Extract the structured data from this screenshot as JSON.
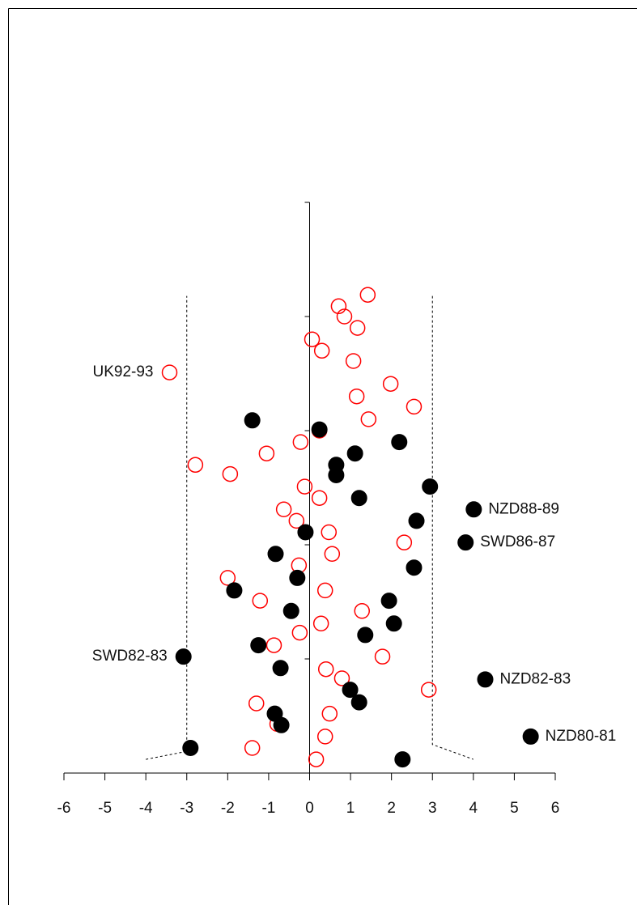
{
  "chart_data": {
    "type": "scatter",
    "xlim": [
      -6,
      6
    ],
    "xticks": [
      -6,
      -5,
      -4,
      -3,
      -2,
      -1,
      0,
      1,
      2,
      3,
      4,
      5,
      6
    ],
    "ylim": [
      0,
      5
    ],
    "yticks": [
      0,
      1,
      2,
      3,
      4,
      5
    ],
    "funnel": [
      {
        "x": [
          -4,
          -3,
          -3
        ],
        "y": [
          0.12,
          0.19,
          4.18
        ]
      },
      {
        "x": [
          3,
          3,
          4
        ],
        "y": [
          4.18,
          0.25,
          0.12
        ]
      }
    ],
    "series": [
      {
        "color": "#ff0000",
        "filled": false,
        "x": [
          1.42,
          0.71,
          0.85,
          1.17,
          0.06,
          0.3,
          1.07,
          -3.42,
          1.98,
          1.15,
          2.55,
          1.44,
          0.24,
          -0.22,
          -1.05,
          -2.79,
          -1.94,
          -0.12,
          0.24,
          -0.63,
          -0.32,
          0.47,
          2.31,
          0.55,
          -0.26,
          -2.0,
          0.38,
          -1.21,
          1.28,
          0.28,
          -0.24,
          -0.87,
          1.78,
          0.4,
          0.79,
          2.91,
          -1.3,
          0.49,
          -0.79,
          0.38,
          -1.4,
          0.16
        ],
        "values": [
          4.19,
          4.09,
          4.0,
          3.9,
          3.8,
          3.7,
          3.61,
          3.51,
          3.41,
          3.3,
          3.21,
          3.1,
          3.0,
          2.9,
          2.8,
          2.7,
          2.62,
          2.51,
          2.41,
          2.31,
          2.21,
          2.11,
          2.02,
          1.92,
          1.82,
          1.71,
          1.6,
          1.51,
          1.42,
          1.31,
          1.23,
          1.12,
          1.02,
          0.91,
          0.83,
          0.73,
          0.61,
          0.52,
          0.43,
          0.32,
          0.22,
          0.12
        ],
        "point_labels": [
          null,
          null,
          null,
          null,
          null,
          null,
          null,
          "UK92-93",
          null,
          null,
          null,
          null,
          null,
          null,
          null,
          null,
          null,
          null,
          null,
          null,
          null,
          null,
          null,
          null,
          null,
          null,
          null,
          null,
          null,
          null,
          null,
          null,
          null,
          null,
          null,
          null,
          null,
          null,
          null,
          null,
          null,
          null
        ]
      },
      {
        "color": "#000000",
        "filled": true,
        "x": [
          -1.4,
          0.24,
          2.19,
          1.11,
          0.65,
          0.65,
          2.94,
          1.21,
          4.01,
          2.61,
          -0.1,
          3.81,
          -0.83,
          2.55,
          -0.3,
          -1.84,
          1.94,
          -0.45,
          2.06,
          1.36,
          -1.25,
          -3.08,
          -0.71,
          4.29,
          0.99,
          1.21,
          -0.85,
          -0.69,
          5.4,
          -2.91,
          2.27
        ],
        "values": [
          3.09,
          3.01,
          2.9,
          2.8,
          2.7,
          2.61,
          2.51,
          2.41,
          2.31,
          2.21,
          2.11,
          2.02,
          1.92,
          1.8,
          1.71,
          1.6,
          1.51,
          1.42,
          1.31,
          1.21,
          1.12,
          1.02,
          0.92,
          0.82,
          0.73,
          0.62,
          0.52,
          0.42,
          0.32,
          0.22,
          0.12
        ],
        "point_labels": [
          null,
          null,
          null,
          null,
          null,
          null,
          null,
          null,
          "NZD88-89",
          null,
          null,
          "SWD86-87",
          null,
          null,
          null,
          null,
          null,
          null,
          null,
          null,
          null,
          "SWD82-83",
          null,
          "NZD82-83",
          null,
          null,
          null,
          null,
          "NZD80-81",
          null,
          null
        ]
      }
    ]
  }
}
